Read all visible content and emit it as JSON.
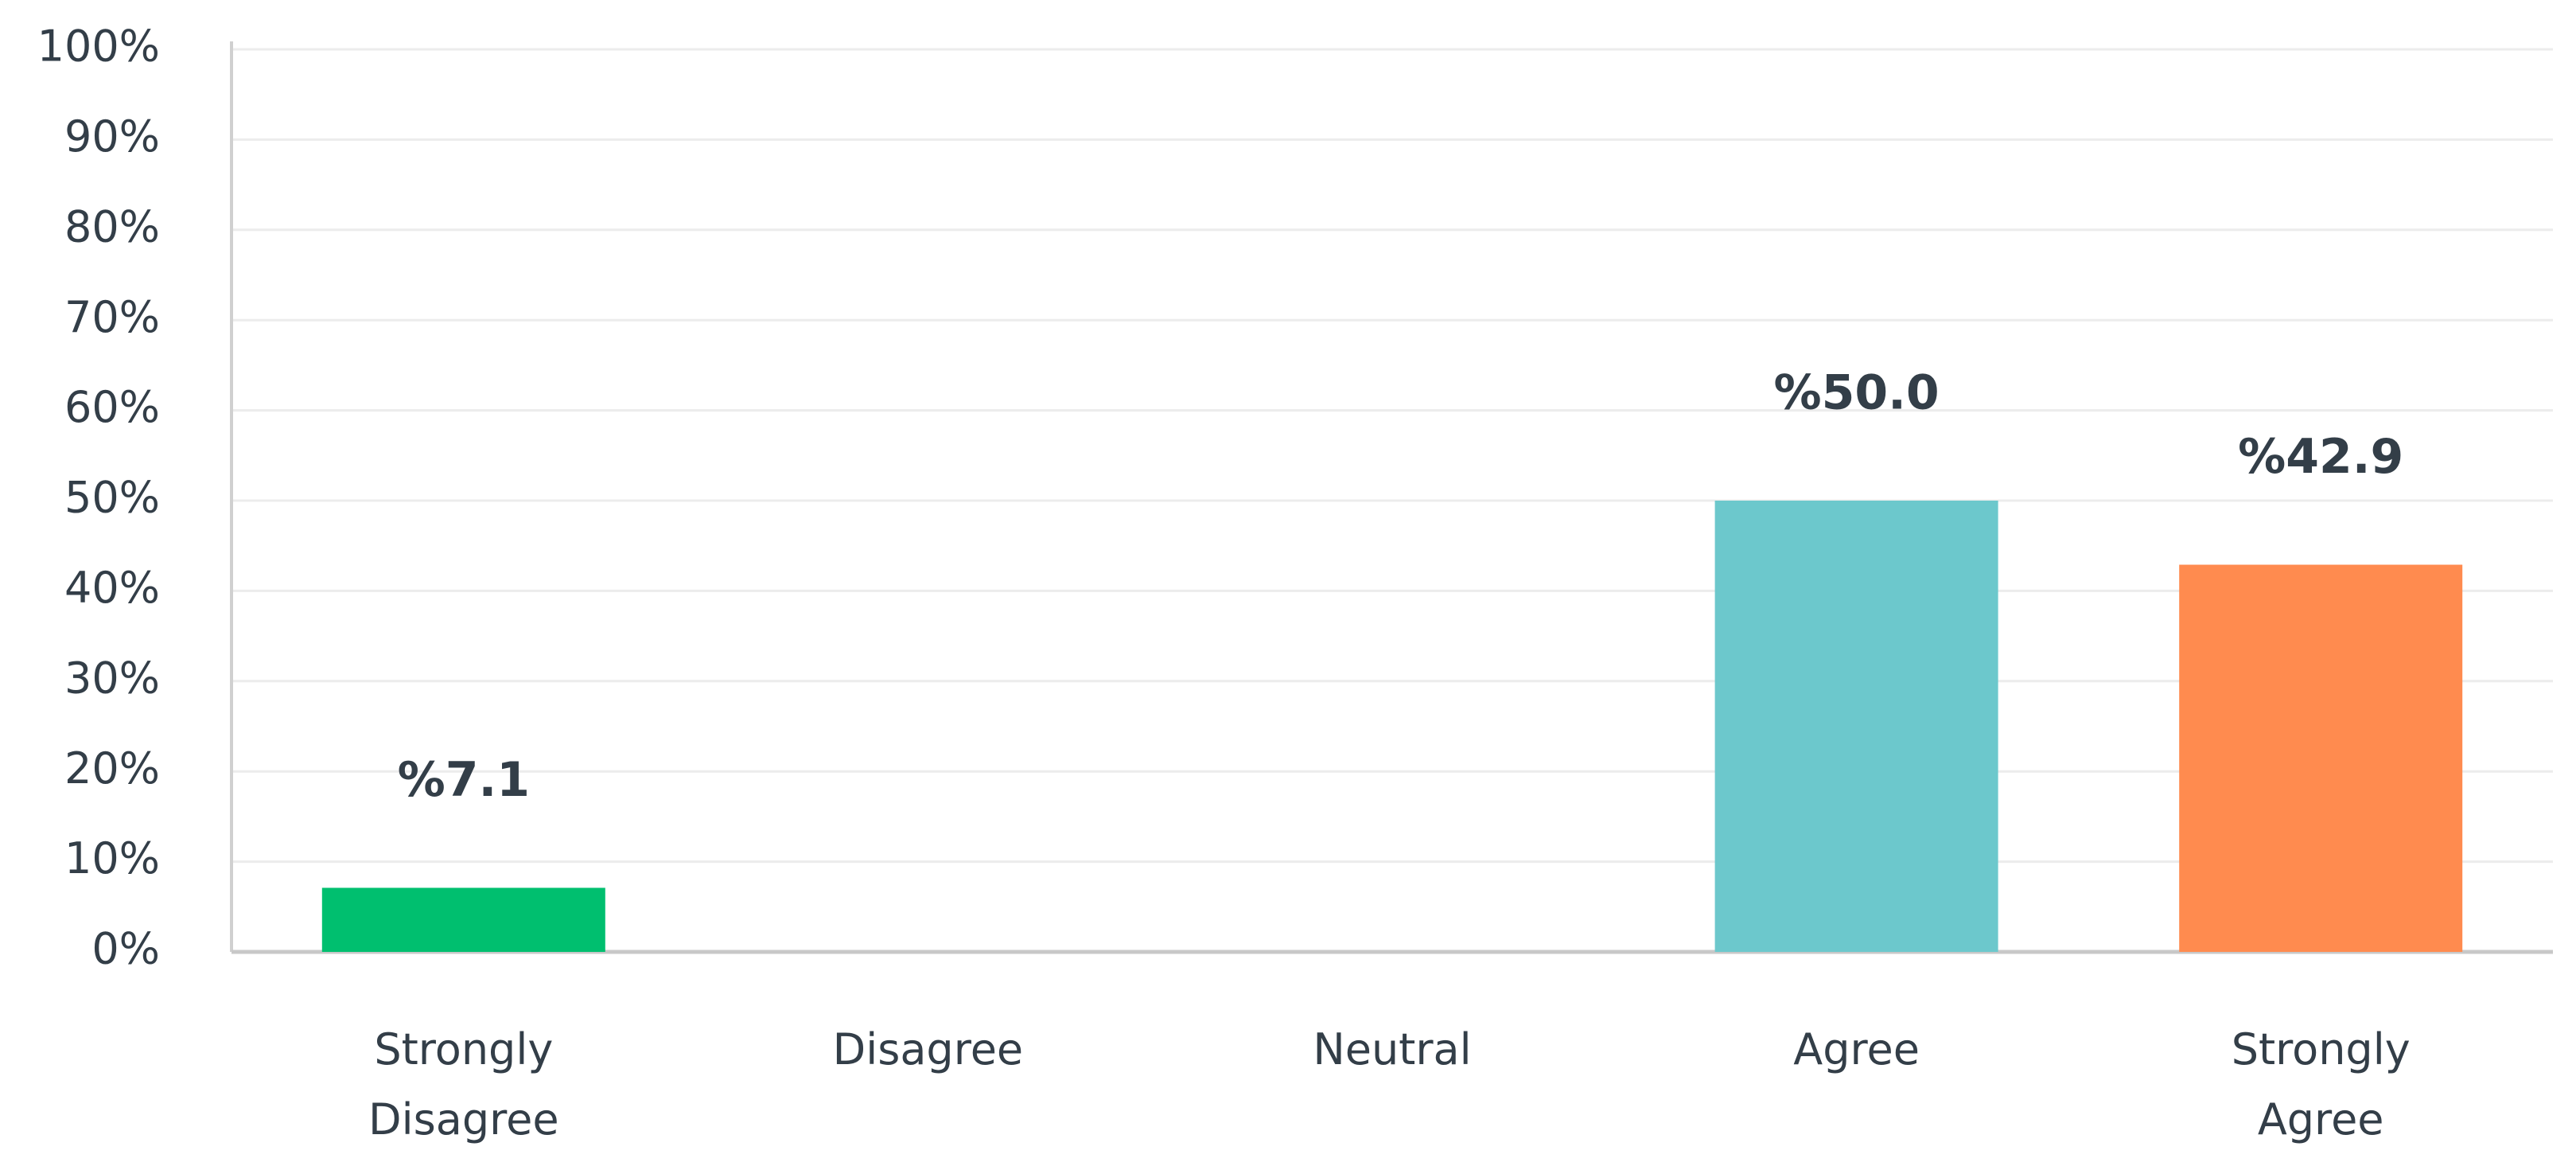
{
  "chart_data": {
    "type": "bar",
    "categories": [
      "Strongly Disagree",
      "Disagree",
      "Neutral",
      "Agree",
      "Strongly Agree"
    ],
    "values": [
      7.1,
      0,
      0,
      50.0,
      42.9
    ],
    "value_labels": [
      "%7.1",
      null,
      null,
      "%50.0",
      "%42.9"
    ],
    "colors": [
      "#00bf6f",
      null,
      null,
      "#6cc8cc",
      "#ff8b4f"
    ],
    "ylim": [
      0,
      100
    ],
    "yticks": [
      {
        "value": 0,
        "label": "0%"
      },
      {
        "value": 10,
        "label": "10%"
      },
      {
        "value": 20,
        "label": "20%"
      },
      {
        "value": 30,
        "label": "30%"
      },
      {
        "value": 40,
        "label": "40%"
      },
      {
        "value": 50,
        "label": "50%"
      },
      {
        "value": 60,
        "label": "60%"
      },
      {
        "value": 70,
        "label": "70%"
      },
      {
        "value": 80,
        "label": "80%"
      },
      {
        "value": 90,
        "label": "90%"
      },
      {
        "value": 100,
        "label": "100%"
      }
    ],
    "grid": true
  }
}
